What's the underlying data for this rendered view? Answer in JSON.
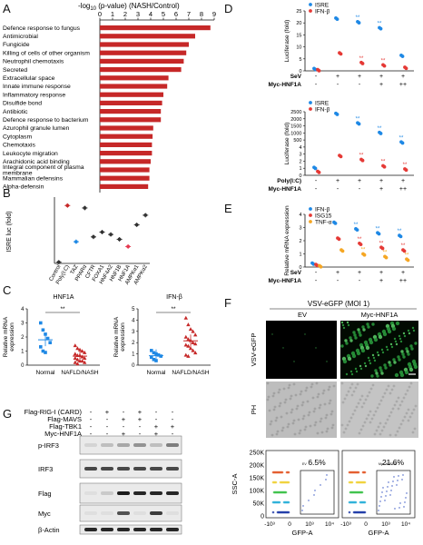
{
  "panels": {
    "A": {
      "letter": "A",
      "axis_title": "-log",
      "axis_title_sub": "10",
      "axis_title_rest": " (p-value)  (NASH/Control)",
      "bar_color": "#c62828",
      "chart_data": {
        "type": "bar",
        "orientation": "horizontal",
        "categories": [
          "Defence response to fungus",
          "Antimicrobial",
          "Fungicide",
          "Killing of cells of other organism",
          "Neutrophil chemotaxis",
          "Secreted",
          "Extracellular space",
          "Innate immune response",
          "Inflammatory response",
          "Disulfide bond",
          "Antibiotic",
          "Defence response to bacterium",
          "Azurophil granule lumen",
          "Cytoplasm",
          "Chemotaxis",
          "Leukocyte migration",
          "Arachidonic acid binding",
          "Integral component of plasma membrane",
          "Mammalian defensins",
          "Alpha-defensin"
        ],
        "values": [
          8.7,
          7.5,
          7.0,
          6.8,
          6.6,
          6.4,
          5.4,
          5.3,
          5.0,
          4.9,
          4.8,
          4.8,
          4.2,
          4.15,
          4.1,
          4.1,
          4.0,
          3.9,
          3.9,
          3.8
        ],
        "ticks": [
          "0",
          "1",
          "2",
          "3",
          "4",
          "5",
          "6",
          "7",
          "8",
          "9"
        ],
        "xlim": [
          0,
          9
        ]
      }
    },
    "B": {
      "letter": "B",
      "ylabel": "ISRE luc (fold)",
      "chart_data": {
        "type": "scatter",
        "categories": [
          "Control",
          "Poly(I:C)",
          "TAZ",
          "PPARα",
          "CFTR",
          "FOXA1",
          "HNF4A2",
          "HNF1B",
          "HNF1A",
          "AMPKα1",
          "AMPKα2"
        ],
        "colors": [
          "#333333",
          "#c62828",
          "#1e88e5",
          "#333333",
          "#333333",
          "#333333",
          "#333333",
          "#333333",
          "#e53950",
          "#333333",
          "#333333"
        ],
        "values": [
          1.0,
          48.0,
          18.0,
          46.0,
          22.0,
          26.0,
          24.0,
          20.0,
          14.0,
          32.0,
          40.0
        ]
      }
    },
    "C": {
      "letter": "C",
      "left": {
        "title": "HNF1A",
        "ylabel": "Relative mRNA expression",
        "yticks": [
          "0",
          "1",
          "2",
          "3",
          "4"
        ],
        "sig": "**",
        "groups": [
          "Normal",
          "NAFLD/NASH"
        ],
        "chart_data": {
          "type": "scatter",
          "series": [
            {
              "name": "Normal",
              "color": "#1e88e5",
              "values": [
                3.0,
                2.5,
                2.2,
                1.9,
                1.6,
                1.3,
                1.0,
                0.9
              ]
            },
            {
              "name": "NAFLD/NASH",
              "color": "#c62828",
              "values": [
                1.4,
                1.2,
                1.1,
                1.0,
                0.9,
                0.8,
                0.7,
                0.7,
                0.6,
                0.5,
                0.5,
                0.4,
                0.3,
                0.3,
                0.2,
                0.2,
                0.1
              ]
            }
          ],
          "ylim": [
            0,
            4
          ]
        }
      },
      "right": {
        "title": "IFN-β",
        "ylabel": "Relative mRNA expression",
        "yticks": [
          "0",
          "1",
          "2",
          "3",
          "4",
          "5"
        ],
        "sig": "**",
        "groups": [
          "Normal",
          "NAFLD/NASH"
        ],
        "chart_data": {
          "type": "scatter",
          "series": [
            {
              "name": "Normal",
              "color": "#1e88e5",
              "values": [
                1.3,
                1.1,
                1.0,
                0.9,
                0.8,
                0.7,
                0.5,
                0.4
              ]
            },
            {
              "name": "NAFLD/NASH",
              "color": "#c62828",
              "values": [
                4.2,
                3.6,
                3.2,
                3.0,
                2.7,
                2.5,
                2.3,
                2.2,
                2.0,
                1.9,
                1.8,
                1.7,
                1.5,
                1.3,
                1.1,
                0.9,
                0.8
              ]
            }
          ],
          "ylim": [
            0,
            5
          ]
        }
      }
    },
    "D": {
      "letter": "D",
      "top": {
        "legend": [
          {
            "label": "ISRE",
            "color": "#1e88e5"
          },
          {
            "label": "IFN-β",
            "color": "#e53935"
          }
        ],
        "ylabel": "Luciferase (fold)",
        "yticks": [
          "0",
          "5",
          "10",
          "15",
          "20",
          "25"
        ],
        "row1_label": "SeV",
        "row2_label": "Myc-HNF1A",
        "row1_signs": [
          "-",
          "+",
          "+",
          "+",
          "+"
        ],
        "row2_signs": [
          "-",
          "-",
          "-",
          "+",
          "++"
        ],
        "stars": [
          "",
          "",
          "**",
          "**",
          ""
        ],
        "chart_data": {
          "type": "scatter",
          "series": [
            {
              "name": "ISRE",
              "color": "#1e88e5",
              "values": [
                1.0,
                22.0,
                20.5,
                18.0,
                6.5
              ]
            },
            {
              "name": "IFN-β",
              "color": "#e53935",
              "values": [
                0.5,
                7.5,
                3.5,
                2.5,
                1.5
              ]
            }
          ],
          "ylim": [
            0,
            25
          ]
        }
      },
      "bottom": {
        "legend": [
          {
            "label": "ISRE",
            "color": "#1e88e5"
          },
          {
            "label": "IFN-β",
            "color": "#e53935"
          }
        ],
        "ylabel": "Luciferase (fold)",
        "yticks": [
          "0",
          "1",
          "2",
          "3",
          "4",
          "500",
          "1000",
          "1500",
          "2000",
          "2500"
        ],
        "row1_label": "Poly(I:C)",
        "row2_label": "Myc-HNF1A",
        "row1_signs": [
          "-",
          "+",
          "+",
          "+",
          "+"
        ],
        "row2_signs": [
          "-",
          "-",
          "-",
          "+",
          "++"
        ],
        "stars": [
          "",
          "",
          "**",
          "**",
          "**"
        ],
        "chart_data": {
          "type": "scatter",
          "series": [
            {
              "name": "ISRE",
              "color": "#1e88e5",
              "values": [
                1.0,
                2400,
                1800,
                1200,
                600
              ]
            },
            {
              "name": "IFN-β",
              "color": "#e53935",
              "values": [
                0.5,
                2.5,
                2.0,
                1.2,
                0.8
              ]
            }
          ]
        }
      }
    },
    "E": {
      "letter": "E",
      "legend": [
        {
          "label": "IFN-β",
          "color": "#1e88e5"
        },
        {
          "label": "ISG15",
          "color": "#e53935"
        },
        {
          "label": "TNF-α",
          "color": "#f5a623"
        }
      ],
      "ylabel": "Relative mRNA expression",
      "yticks": [
        "0",
        "1",
        "2",
        "3",
        "4"
      ],
      "row1_label": "SeV",
      "row2_label": "Myc-HNF1A",
      "row1_signs": [
        "-",
        "+",
        "+",
        "+",
        "+"
      ],
      "row2_signs": [
        "-",
        "-",
        "-",
        "+",
        "++"
      ],
      "stars": [
        "",
        "",
        "**",
        "**",
        "**"
      ],
      "chart_data": {
        "type": "scatter",
        "series": [
          {
            "name": "IFN-β",
            "color": "#1e88e5",
            "values": [
              0.3,
              3.4,
              2.9,
              2.6,
              2.4
            ]
          },
          {
            "name": "ISG15",
            "color": "#e53935",
            "values": [
              0.2,
              2.2,
              1.8,
              1.5,
              1.3
            ]
          },
          {
            "name": "TNF-α",
            "color": "#f5a623",
            "values": [
              0.1,
              1.3,
              1.0,
              0.8,
              0.6
            ]
          }
        ],
        "ylim": [
          0,
          4
        ]
      }
    },
    "F": {
      "letter": "F",
      "header": "VSV-eGFP (MOI 1)",
      "col_ev": "EV",
      "col_hnf": "Myc-HNF1A",
      "row_gfp": "VSV-eGFP",
      "row_ph": "PH",
      "facs": {
        "ylabel": "SSC-A",
        "yticks": [
          "250K",
          "200K",
          "150K",
          "100K",
          "50K",
          "0"
        ],
        "xlabel": "GFP-A",
        "xticks": [
          "-10³",
          "0",
          "10³",
          "10⁴"
        ],
        "left_gate": "EV",
        "left_pct": "6.5%",
        "right_gate": "Myc-HNF1A",
        "right_pct": "21.6%"
      }
    },
    "G": {
      "letter": "G",
      "rows": [
        {
          "label": "Flag-RIG-I (CARD)",
          "signs": [
            "-",
            "+",
            "-",
            "+",
            "-",
            "-"
          ]
        },
        {
          "label": "Flag-MAVS",
          "signs": [
            "-",
            "-",
            "+",
            "+",
            "-",
            "-"
          ]
        },
        {
          "label": "Flag-TBK1",
          "signs": [
            "-",
            "-",
            "-",
            "-",
            "+",
            "+"
          ]
        },
        {
          "label": "Myc-HNF1A",
          "signs": [
            "-",
            "-",
            "+",
            "-",
            "+",
            "-"
          ]
        }
      ],
      "blots": [
        {
          "label": "p-IRF3"
        },
        {
          "label": "IRF3"
        },
        {
          "label": "Flag"
        },
        {
          "label": "Myc"
        },
        {
          "label": "β-Actin"
        }
      ]
    }
  }
}
